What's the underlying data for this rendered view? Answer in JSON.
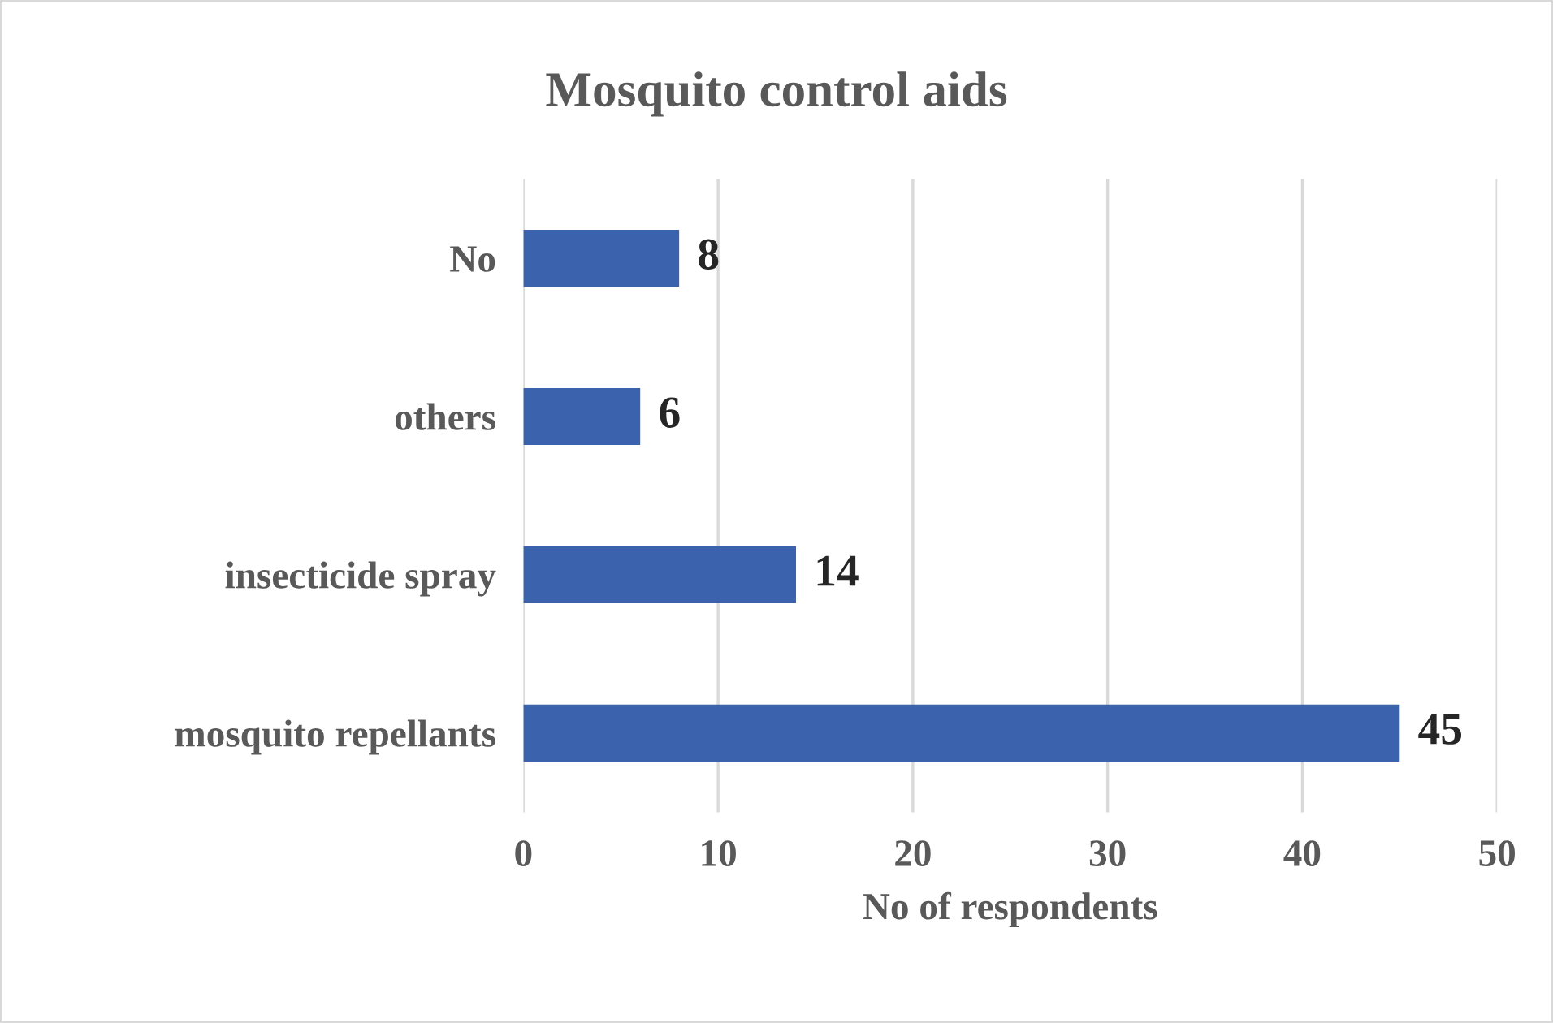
{
  "chart_data": {
    "type": "bar",
    "orientation": "horizontal",
    "title": "Mosquito control aids",
    "xlabel": "No of respondents",
    "categories": [
      "No",
      "others",
      "insecticide spray",
      "mosquito repellants"
    ],
    "values": [
      8,
      6,
      14,
      45
    ],
    "color": "#3a62ad",
    "xlim": [
      0,
      50
    ],
    "xticks": [
      0,
      10,
      20,
      30,
      40,
      50
    ],
    "grid": "x",
    "data_labels": true
  }
}
